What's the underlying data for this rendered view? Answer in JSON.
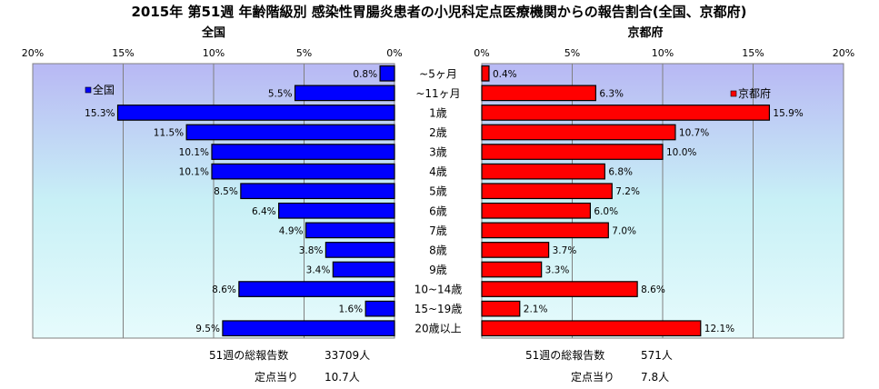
{
  "chart_data": {
    "type": "bar",
    "title": "2015年 第51週 年齢階級別 感染性胃腸炎患者の小児科定点医療機関からの報告割合(全国、京都府)",
    "categories": [
      "~5ヶ月",
      "~11ヶ月",
      "1歳",
      "2歳",
      "3歳",
      "4歳",
      "5歳",
      "6歳",
      "7歳",
      "8歳",
      "9歳",
      "10~14歳",
      "15~19歳",
      "20歳以上"
    ],
    "panels": [
      {
        "name": "全国",
        "legend": "全国",
        "color": "#0000ff",
        "xlim": [
          0,
          20
        ],
        "ticks": [
          "0%",
          "5%",
          "10%",
          "15%",
          "20%"
        ],
        "values": [
          0.8,
          5.5,
          15.3,
          11.5,
          10.1,
          10.1,
          8.5,
          6.4,
          4.9,
          3.8,
          3.4,
          8.6,
          1.6,
          9.5
        ],
        "labels": [
          "0.8%",
          "5.5%",
          "15.3%",
          "11.5%",
          "10.1%",
          "10.1%",
          "8.5%",
          "6.4%",
          "4.9%",
          "3.8%",
          "3.4%",
          "8.6%",
          "1.6%",
          "9.5%"
        ],
        "footer": {
          "total_label": "51週の総報告数",
          "total_value": "33709人",
          "per_label": "定点当り",
          "per_value": "10.7人"
        }
      },
      {
        "name": "京都府",
        "legend": "京都府",
        "color": "#ff0000",
        "xlim": [
          0,
          20
        ],
        "ticks": [
          "0%",
          "5%",
          "10%",
          "15%",
          "20%"
        ],
        "values": [
          0.4,
          6.3,
          15.9,
          10.7,
          10.0,
          6.8,
          7.2,
          6.0,
          7.0,
          3.7,
          3.3,
          8.6,
          2.1,
          12.1
        ],
        "labels": [
          "0.4%",
          "6.3%",
          "15.9%",
          "10.7%",
          "10.0%",
          "6.8%",
          "7.2%",
          "6.0%",
          "7.0%",
          "3.7%",
          "3.3%",
          "8.6%",
          "2.1%",
          "12.1%"
        ],
        "footer": {
          "total_label": "51週の総報告数",
          "total_value": "571人",
          "per_label": "定点当り",
          "per_value": "7.8人"
        }
      }
    ]
  }
}
